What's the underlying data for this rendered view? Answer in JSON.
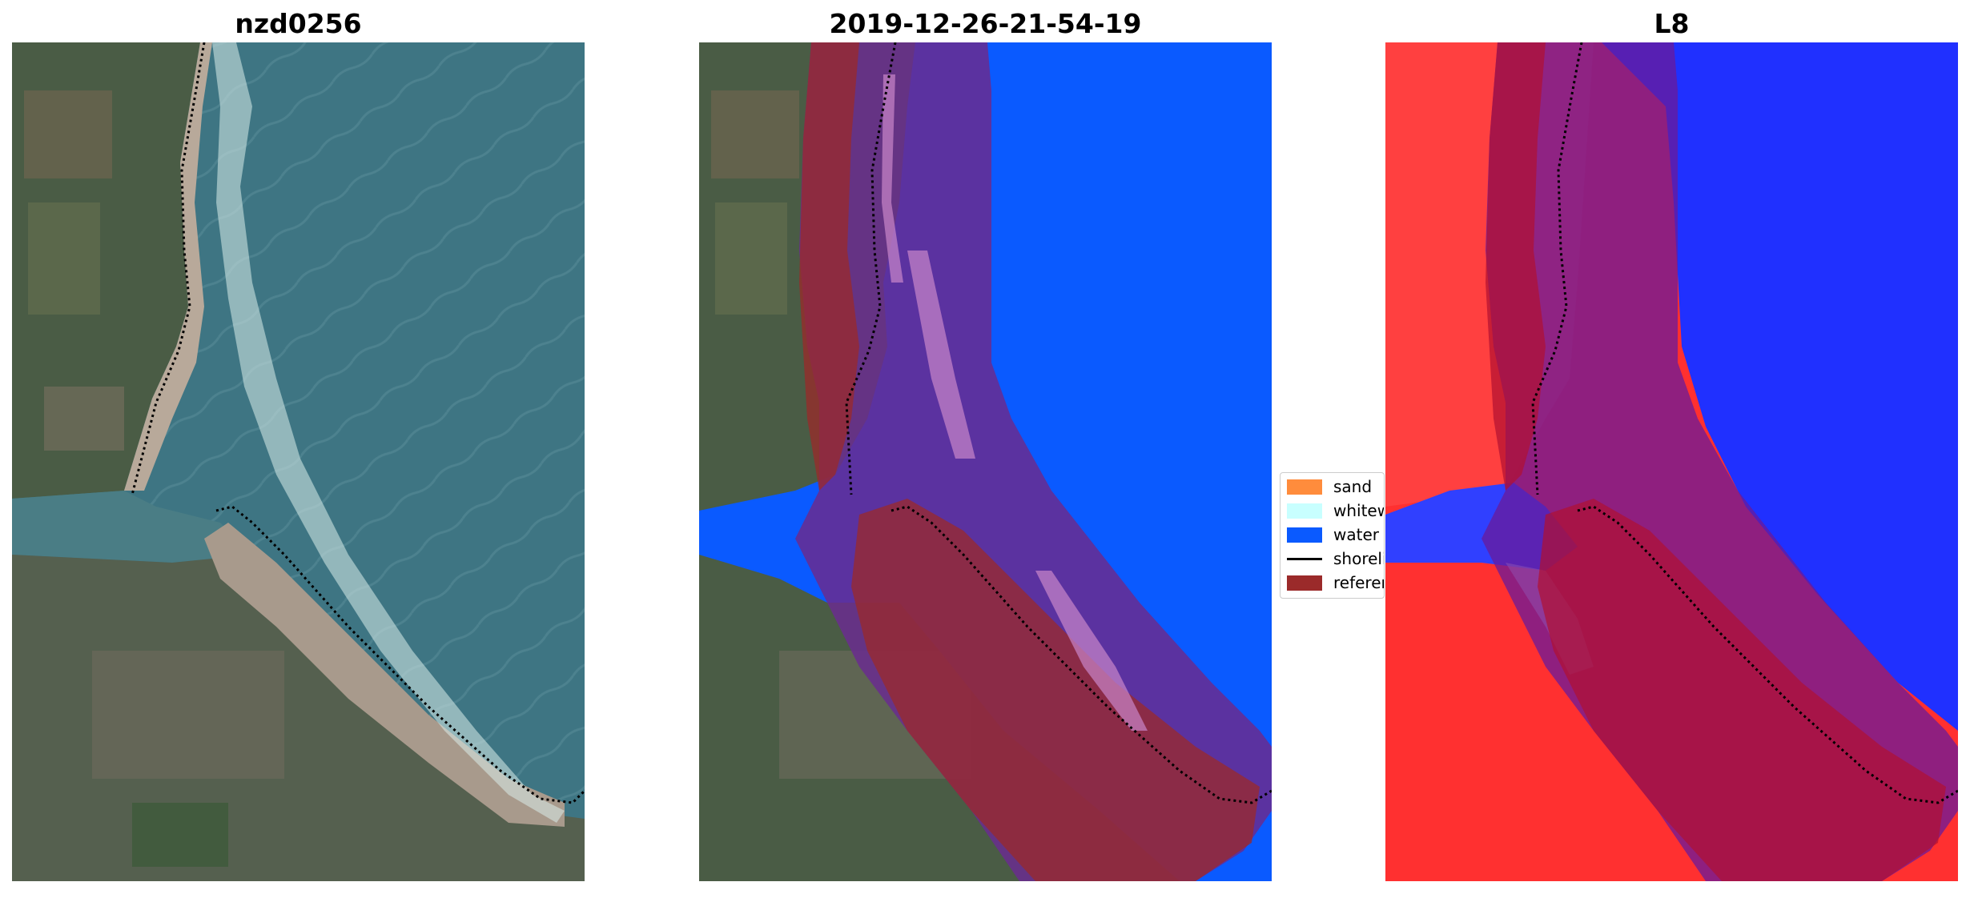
{
  "panels": [
    {
      "title": "nzd0256"
    },
    {
      "title": "2019-12-26-21-54-19"
    },
    {
      "title": "L8"
    }
  ],
  "legend": {
    "items": [
      {
        "label": "sand",
        "color": "#ff8c3c"
      },
      {
        "label": "whitewater",
        "color": "#c8ffff"
      },
      {
        "label": "water",
        "color": "#0a5aff"
      },
      {
        "label": "shoreline",
        "color": "#000000"
      },
      {
        "label": "reference",
        "color": "#9b2a2a"
      }
    ]
  },
  "colors": {
    "ocean": "#3e7583",
    "land_green": "#3f5a44",
    "sand": "#b8a99a",
    "water_class": "#0a5aff",
    "buffer": "#9b2a2a",
    "mndwi_land": "#ff3030",
    "mndwi_water": "#2030ff"
  }
}
